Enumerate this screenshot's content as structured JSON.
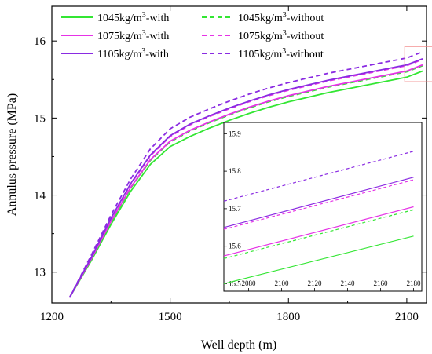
{
  "chart_data": {
    "type": "line",
    "xlabel": "Well depth (m)",
    "ylabel": "Annulus pressure (MPa)",
    "xlim": [
      1200,
      2150
    ],
    "ylim": [
      12.6,
      16.45
    ],
    "xticks": [
      "1200",
      "1500",
      "1800",
      "2100"
    ],
    "xtick_values": [
      1200,
      1500,
      1800,
      2100
    ],
    "yticks": [
      "13",
      "14",
      "15",
      "16"
    ],
    "ytick_values": [
      13,
      14,
      15,
      16
    ],
    "legend": {
      "position": "top-left",
      "entries": [
        {
          "base": "1045kg/m",
          "sup": "3",
          "suffix": "-with",
          "color": "#33e633",
          "dash": "solid"
        },
        {
          "base": "1045kg/m",
          "sup": "3",
          "suffix": "-without",
          "color": "#33e633",
          "dash": "dash"
        },
        {
          "base": "1075kg/m",
          "sup": "3",
          "suffix": "-with",
          "color": "#e633e6",
          "dash": "solid"
        },
        {
          "base": "1075kg/m",
          "sup": "3",
          "suffix": "-without",
          "color": "#e633e6",
          "dash": "dash"
        },
        {
          "base": "1105kg/m",
          "sup": "3",
          "suffix": "-with",
          "color": "#8a2be2",
          "dash": "solid"
        },
        {
          "base": "1105kg/m",
          "sup": "3",
          "suffix": "-without",
          "color": "#8a2be2",
          "dash": "dash"
        }
      ]
    },
    "x": [
      1245,
      1300,
      1350,
      1400,
      1450,
      1500,
      1550,
      1600,
      1650,
      1700,
      1750,
      1800,
      1850,
      1900,
      1950,
      2000,
      2050,
      2100,
      2140
    ],
    "series": [
      {
        "name": "1045kg/m3-with",
        "color": "#33e633",
        "dash": "solid",
        "values": [
          12.67,
          13.15,
          13.62,
          14.05,
          14.4,
          14.63,
          14.76,
          14.87,
          14.97,
          15.06,
          15.14,
          15.21,
          15.27,
          15.33,
          15.38,
          15.43,
          15.48,
          15.53,
          15.61
        ]
      },
      {
        "name": "1045kg/m3-without",
        "color": "#33e633",
        "dash": "dash",
        "values": [
          12.67,
          13.17,
          13.65,
          14.09,
          14.45,
          14.69,
          14.83,
          14.94,
          15.04,
          15.13,
          15.21,
          15.28,
          15.34,
          15.4,
          15.45,
          15.5,
          15.55,
          15.6,
          15.68
        ]
      },
      {
        "name": "1075kg/m3-with",
        "color": "#e633e6",
        "dash": "solid",
        "values": [
          12.67,
          13.17,
          13.66,
          14.1,
          14.46,
          14.7,
          14.84,
          14.95,
          15.05,
          15.14,
          15.22,
          15.29,
          15.35,
          15.41,
          15.46,
          15.51,
          15.56,
          15.61,
          15.69
        ]
      },
      {
        "name": "1075kg/m3-without",
        "color": "#e633e6",
        "dash": "dash",
        "values": [
          12.67,
          13.19,
          13.69,
          14.14,
          14.51,
          14.76,
          14.91,
          15.02,
          15.12,
          15.21,
          15.29,
          15.36,
          15.42,
          15.48,
          15.53,
          15.58,
          15.63,
          15.68,
          15.76
        ]
      },
      {
        "name": "1105kg/m3-with",
        "color": "#8a2be2",
        "dash": "solid",
        "values": [
          12.67,
          13.19,
          13.7,
          14.15,
          14.52,
          14.77,
          14.92,
          15.03,
          15.13,
          15.22,
          15.3,
          15.37,
          15.43,
          15.49,
          15.54,
          15.59,
          15.64,
          15.69,
          15.77
        ]
      },
      {
        "name": "1105kg/m3-without",
        "color": "#8a2be2",
        "dash": "dash",
        "values": [
          12.67,
          13.22,
          13.74,
          14.21,
          14.6,
          14.86,
          15.01,
          15.12,
          15.22,
          15.31,
          15.39,
          15.46,
          15.52,
          15.58,
          15.63,
          15.68,
          15.73,
          15.78,
          15.86
        ]
      }
    ],
    "highlight_box": {
      "x_range": [
        2095,
        2175
      ],
      "y_range": [
        15.47,
        15.93
      ],
      "color": "#f08080"
    },
    "inset": {
      "xlim": [
        2065,
        2185
      ],
      "ylim": [
        15.48,
        15.93
      ],
      "xticks": [
        "2080",
        "2100",
        "2120",
        "2140",
        "2160",
        "2180"
      ],
      "xtick_values": [
        2080,
        2100,
        2120,
        2140,
        2160,
        2180
      ],
      "yticks": [
        "15.5",
        "15.6",
        "15.7",
        "15.8",
        "15.9"
      ],
      "ytick_values": [
        15.5,
        15.6,
        15.7,
        15.8,
        15.9
      ],
      "x": [
        2065,
        2180
      ],
      "series": [
        {
          "name": "1045kg/m3-with",
          "color": "#33e633",
          "dash": "solid",
          "values": [
            15.5,
            15.627
          ]
        },
        {
          "name": "1045kg/m3-without",
          "color": "#33e633",
          "dash": "dash",
          "values": [
            15.567,
            15.697
          ]
        },
        {
          "name": "1075kg/m3-with",
          "color": "#e633e6",
          "dash": "solid",
          "values": [
            15.574,
            15.705
          ]
        },
        {
          "name": "1075kg/m3-without",
          "color": "#e633e6",
          "dash": "dash",
          "values": [
            15.645,
            15.777
          ]
        },
        {
          "name": "1105kg/m3-with",
          "color": "#8a2be2",
          "dash": "solid",
          "values": [
            15.65,
            15.784
          ]
        },
        {
          "name": "1105kg/m3-without",
          "color": "#8a2be2",
          "dash": "dash",
          "values": [
            15.72,
            15.853
          ]
        }
      ]
    }
  }
}
